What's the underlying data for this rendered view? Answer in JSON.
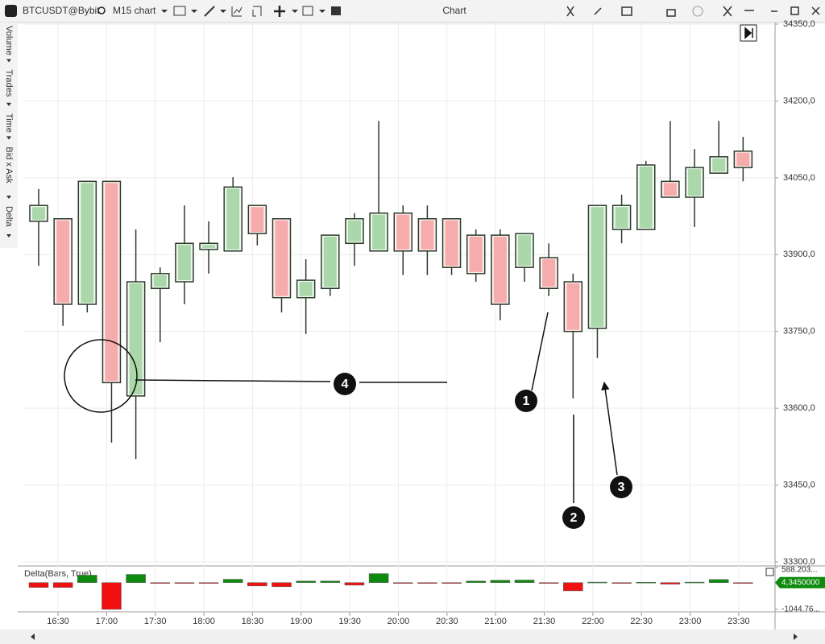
{
  "toolbar": {
    "symbol": "BTCUSDT@Bybit",
    "timeframe": "M15 chart",
    "title": "Chart"
  },
  "side_panel": [
    "Volume",
    "Trades",
    "Time",
    "Bid x Ask",
    "Delta"
  ],
  "chart_data": {
    "type": "candlestick",
    "open": [
      33965,
      33970,
      33803,
      34043,
      33624,
      33834,
      33847,
      33910,
      33907,
      33996,
      33970,
      33816,
      33834,
      33922,
      33907,
      33981,
      33970,
      33970,
      33938,
      33938,
      33875,
      33894,
      33847,
      33756,
      33949,
      33949,
      34043,
      34012,
      34059,
      34102
    ],
    "high": [
      34028,
      33970,
      34043,
      34043,
      33949,
      33875,
      33996,
      33965,
      34051,
      33996,
      33970,
      33891,
      33938,
      33981,
      34161,
      33996,
      33996,
      33970,
      33949,
      33949,
      33941,
      33922,
      33863,
      33996,
      34017,
      34083,
      34161,
      34106,
      34161,
      34130
    ],
    "low": [
      33878,
      33761,
      33787,
      33533,
      33501,
      33729,
      33803,
      33863,
      33907,
      33918,
      33787,
      33745,
      33819,
      33878,
      33907,
      33860,
      33860,
      33860,
      33847,
      33772,
      33847,
      33819,
      33619,
      33698,
      33922,
      33949,
      34012,
      33954,
      34059,
      34043
    ],
    "close": [
      33996,
      33803,
      34043,
      33650,
      33847,
      33863,
      33922,
      33922,
      34032,
      33941,
      33816,
      33850,
      33938,
      33970,
      33981,
      33907,
      33907,
      33875,
      33863,
      33803,
      33941,
      33834,
      33750,
      33996,
      33996,
      34075,
      34012,
      34070,
      34091,
      34070
    ],
    "up_color": "#2e9e2e",
    "down_color": "#e83030",
    "ylim": [
      33300,
      34350
    ],
    "yticks": [
      {
        "value": 34350,
        "label": "34350,0"
      },
      {
        "value": 34200,
        "label": "34200,0"
      },
      {
        "value": 34050,
        "label": "34050,0"
      },
      {
        "value": 33900,
        "label": "33900,0"
      },
      {
        "value": 33750,
        "label": "33750,0"
      },
      {
        "value": 33600,
        "label": "33600,0"
      },
      {
        "value": 33450,
        "label": "33450,0"
      },
      {
        "value": 33300,
        "label": "33300,0"
      }
    ],
    "grid": true,
    "time_labels": [
      "16:30",
      "17:00",
      "17:30",
      "18:00",
      "18:30",
      "19:00",
      "19:30",
      "20:00",
      "20:30",
      "21:00",
      "21:30",
      "22:00",
      "22:30",
      "23:00",
      "23:30"
    ],
    "annotations": [
      "1",
      "2",
      "3",
      "4"
    ],
    "delta": {
      "title": "Delta(Bars, True)",
      "values": [
        -190,
        -190,
        290,
        -1044,
        320,
        -20,
        -10,
        -20,
        130,
        -130,
        -160,
        60,
        60,
        -100,
        350,
        -10,
        -10,
        -10,
        60,
        90,
        100,
        -10,
        -320,
        20,
        -20,
        15,
        -60,
        20,
        120,
        -10
      ],
      "ylim": [
        -1044.76,
        588.203
      ],
      "yticks": [
        {
          "value": 588.203,
          "label": "588.203..."
        },
        {
          "value": -1044.76,
          "label": "-1044.76..."
        }
      ],
      "last_label": "4,3450000",
      "up_color": "#0e8a0e",
      "down_color": "#f01010"
    }
  }
}
